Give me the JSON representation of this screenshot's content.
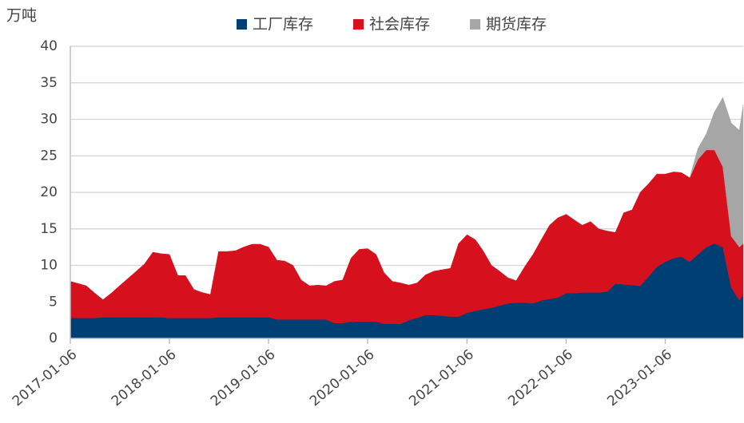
{
  "chart_data": {
    "type": "stacked_area",
    "y_axis_label": "万吨",
    "x": [
      "2017-01-06",
      "2017-02-06",
      "2017-03-06",
      "2017-04-06",
      "2017-05-06",
      "2017-06-06",
      "2017-07-06",
      "2017-08-06",
      "2017-09-06",
      "2017-10-06",
      "2017-11-06",
      "2017-12-06",
      "2018-01-06",
      "2018-02-06",
      "2018-03-06",
      "2018-04-06",
      "2018-05-06",
      "2018-06-06",
      "2018-07-06",
      "2018-08-06",
      "2018-09-06",
      "2018-10-06",
      "2018-11-06",
      "2018-12-06",
      "2019-01-06",
      "2019-02-06",
      "2019-03-06",
      "2019-04-06",
      "2019-05-06",
      "2019-06-06",
      "2019-07-06",
      "2019-08-06",
      "2019-09-06",
      "2019-10-06",
      "2019-11-06",
      "2019-12-06",
      "2020-01-06",
      "2020-02-06",
      "2020-03-06",
      "2020-04-06",
      "2020-05-06",
      "2020-06-06",
      "2020-07-06",
      "2020-08-06",
      "2020-09-06",
      "2020-10-06",
      "2020-11-06",
      "2020-12-06",
      "2021-01-06",
      "2021-02-06",
      "2021-03-06",
      "2021-04-06",
      "2021-05-06",
      "2021-06-06",
      "2021-07-06",
      "2021-08-06",
      "2021-09-06",
      "2021-10-06",
      "2021-11-06",
      "2021-12-06",
      "2022-01-06",
      "2022-02-06",
      "2022-03-06",
      "2022-04-06",
      "2022-05-06",
      "2022-06-06",
      "2022-07-06",
      "2022-08-06",
      "2022-09-06",
      "2022-10-06",
      "2022-11-06",
      "2022-12-06",
      "2023-01-06",
      "2023-02-06",
      "2023-03-06",
      "2023-04-06",
      "2023-05-06",
      "2023-06-06",
      "2023-07-06",
      "2023-08-06",
      "2023-09-06",
      "2023-10-06",
      "2023-10-20"
    ],
    "series": [
      {
        "name": "工厂库存",
        "color": "#003f73",
        "values": [
          2.8,
          2.8,
          2.8,
          2.8,
          2.9,
          2.9,
          2.9,
          2.9,
          2.9,
          2.9,
          2.9,
          2.9,
          2.8,
          2.8,
          2.8,
          2.8,
          2.8,
          2.8,
          2.9,
          2.9,
          2.9,
          2.9,
          2.9,
          2.9,
          2.9,
          2.6,
          2.6,
          2.6,
          2.6,
          2.6,
          2.6,
          2.6,
          2.1,
          2.1,
          2.3,
          2.3,
          2.3,
          2.3,
          2.0,
          2.0,
          2.0,
          2.5,
          2.8,
          3.2,
          3.2,
          3.1,
          3.0,
          3.0,
          3.5,
          3.8,
          4.0,
          4.2,
          4.5,
          4.8,
          4.9,
          4.9,
          4.8,
          5.2,
          5.4,
          5.6,
          6.2,
          6.2,
          6.3,
          6.3,
          6.3,
          6.4,
          7.5,
          7.4,
          7.3,
          7.2,
          8.5,
          9.8,
          10.5,
          11.0,
          11.2,
          10.5,
          11.5,
          12.5,
          13.0,
          12.5,
          7.0,
          5.2,
          6.0
        ]
      },
      {
        "name": "社会库存",
        "color": "#d7101e",
        "values": [
          5.0,
          4.7,
          4.4,
          3.4,
          2.4,
          3.3,
          4.3,
          5.3,
          6.3,
          7.3,
          8.9,
          8.7,
          8.7,
          5.8,
          5.8,
          3.9,
          3.5,
          3.2,
          9.0,
          9.0,
          9.1,
          9.6,
          10.0,
          10.0,
          9.6,
          8.1,
          8.0,
          7.4,
          5.4,
          4.6,
          4.7,
          4.6,
          5.7,
          5.9,
          8.7,
          9.9,
          10.0,
          9.2,
          7.0,
          5.8,
          5.6,
          4.8,
          4.8,
          5.5,
          6.0,
          6.3,
          6.6,
          10.0,
          10.7,
          9.7,
          8.0,
          5.8,
          4.7,
          3.5,
          3.0,
          4.9,
          6.7,
          8.3,
          10.1,
          10.9,
          10.8,
          10.0,
          9.2,
          9.7,
          8.7,
          8.3,
          7.0,
          9.8,
          10.3,
          12.8,
          12.7,
          12.7,
          12.0,
          11.8,
          11.5,
          11.5,
          13.0,
          13.3,
          12.8,
          11.0,
          7.0,
          7.3,
          7.0
        ]
      },
      {
        "name": "期货库存",
        "color": "#a6a6a6",
        "values": [
          null,
          null,
          null,
          null,
          null,
          null,
          null,
          null,
          null,
          null,
          null,
          null,
          null,
          null,
          null,
          null,
          null,
          null,
          null,
          null,
          null,
          null,
          null,
          null,
          null,
          null,
          null,
          null,
          null,
          null,
          null,
          null,
          null,
          null,
          null,
          null,
          null,
          null,
          null,
          null,
          null,
          null,
          null,
          null,
          null,
          null,
          null,
          null,
          null,
          null,
          null,
          null,
          null,
          null,
          null,
          null,
          null,
          null,
          null,
          null,
          null,
          null,
          null,
          null,
          null,
          null,
          null,
          null,
          null,
          null,
          null,
          null,
          null,
          null,
          null,
          0,
          1.5,
          2.2,
          5.2,
          9.5,
          15.5,
          16,
          19
        ]
      }
    ],
    "xlim": [
      "2017-01-06",
      "2023-10-20"
    ],
    "xticks": [
      "2017-01-06",
      "2018-01-06",
      "2019-01-06",
      "2020-01-06",
      "2021-01-06",
      "2022-01-06",
      "2023-01-06"
    ],
    "ylim": [
      0,
      40
    ],
    "yticks": [
      0,
      5,
      10,
      15,
      20,
      25,
      30,
      35,
      40
    ],
    "grid": true,
    "legend": "top"
  }
}
